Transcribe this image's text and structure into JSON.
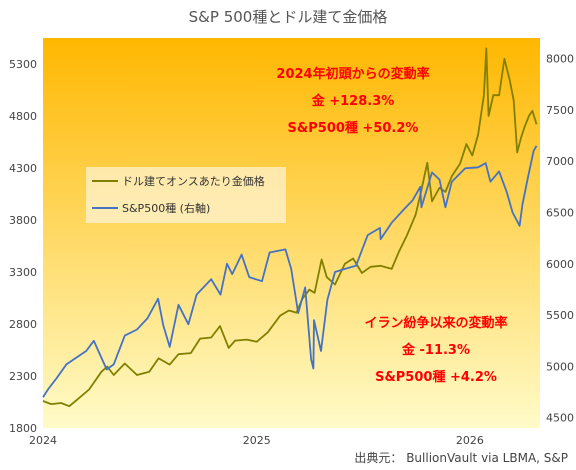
{
  "chart_data": {
    "type": "line",
    "title": "S&P 500種とドル建て金価格",
    "source": "出典元： BullionVault via LBMA, S&P",
    "x_range": [
      "2024-01-01",
      "2026-05-01"
    ],
    "x_tick_labels": [
      "2024",
      "2025",
      "2026"
    ],
    "x_tick_dates": [
      "2024-01-01",
      "2025-01-01",
      "2026-01-01"
    ],
    "left_axis": {
      "label": "",
      "ylim": [
        1800,
        5550
      ],
      "ticks": [
        1800,
        2300,
        2800,
        3300,
        3800,
        4300,
        4800,
        5300
      ]
    },
    "right_axis": {
      "label": "",
      "ylim": [
        4400,
        8200
      ],
      "ticks": [
        4500,
        5000,
        5500,
        6000,
        6500,
        7000,
        7500,
        8000
      ]
    },
    "legend": {
      "placement": "center-left",
      "entries": [
        "ドル建てオンスあたり金価格",
        "S&P500種 (右軸)"
      ]
    },
    "series": [
      {
        "name": "ドル建てオンスあたり金価格",
        "axis": "left",
        "color": "#808000",
        "points": [
          [
            "2024-01-01",
            2060
          ],
          [
            "2024-01-15",
            2030
          ],
          [
            "2024-02-01",
            2040
          ],
          [
            "2024-02-15",
            2010
          ],
          [
            "2024-03-01",
            2080
          ],
          [
            "2024-03-20",
            2170
          ],
          [
            "2024-04-10",
            2340
          ],
          [
            "2024-04-20",
            2390
          ],
          [
            "2024-05-01",
            2310
          ],
          [
            "2024-05-20",
            2420
          ],
          [
            "2024-06-10",
            2310
          ],
          [
            "2024-07-01",
            2340
          ],
          [
            "2024-07-17",
            2470
          ],
          [
            "2024-08-05",
            2410
          ],
          [
            "2024-08-20",
            2510
          ],
          [
            "2024-09-10",
            2520
          ],
          [
            "2024-09-26",
            2660
          ],
          [
            "2024-10-15",
            2670
          ],
          [
            "2024-10-30",
            2780
          ],
          [
            "2024-11-14",
            2570
          ],
          [
            "2024-11-25",
            2640
          ],
          [
            "2024-12-15",
            2650
          ],
          [
            "2025-01-01",
            2630
          ],
          [
            "2025-01-20",
            2720
          ],
          [
            "2025-02-10",
            2880
          ],
          [
            "2025-02-25",
            2930
          ],
          [
            "2025-03-10",
            2910
          ],
          [
            "2025-03-20",
            3040
          ],
          [
            "2025-04-01",
            3130
          ],
          [
            "2025-04-10",
            3100
          ],
          [
            "2025-04-22",
            3420
          ],
          [
            "2025-05-01",
            3250
          ],
          [
            "2025-05-15",
            3180
          ],
          [
            "2025-06-01",
            3380
          ],
          [
            "2025-06-15",
            3430
          ],
          [
            "2025-06-30",
            3290
          ],
          [
            "2025-07-15",
            3350
          ],
          [
            "2025-08-01",
            3360
          ],
          [
            "2025-08-20",
            3330
          ],
          [
            "2025-09-01",
            3490
          ],
          [
            "2025-09-15",
            3650
          ],
          [
            "2025-09-30",
            3850
          ],
          [
            "2025-10-08",
            4040
          ],
          [
            "2025-10-20",
            4350
          ],
          [
            "2025-10-28",
            3980
          ],
          [
            "2025-11-10",
            4110
          ],
          [
            "2025-11-20",
            4070
          ],
          [
            "2025-12-01",
            4220
          ],
          [
            "2025-12-15",
            4340
          ],
          [
            "2025-12-26",
            4530
          ],
          [
            "2026-01-05",
            4420
          ],
          [
            "2026-01-15",
            4620
          ],
          [
            "2026-01-25",
            5000
          ],
          [
            "2026-01-29",
            5450
          ],
          [
            "2026-02-02",
            4800
          ],
          [
            "2026-02-10",
            5000
          ],
          [
            "2026-02-20",
            5000
          ],
          [
            "2026-03-01",
            5350
          ],
          [
            "2026-03-10",
            5150
          ],
          [
            "2026-03-17",
            4950
          ],
          [
            "2026-03-23",
            4450
          ],
          [
            "2026-03-30",
            4600
          ],
          [
            "2026-04-05",
            4700
          ],
          [
            "2026-04-12",
            4800
          ],
          [
            "2026-04-18",
            4850
          ],
          [
            "2026-04-25",
            4720
          ]
        ]
      },
      {
        "name": "S&P500種 (右軸)",
        "axis": "right",
        "color": "#4472C4",
        "points": [
          [
            "2024-01-01",
            4700
          ],
          [
            "2024-01-10",
            4780
          ],
          [
            "2024-01-25",
            4890
          ],
          [
            "2024-02-10",
            5020
          ],
          [
            "2024-02-28",
            5090
          ],
          [
            "2024-03-15",
            5150
          ],
          [
            "2024-03-28",
            5250
          ],
          [
            "2024-04-19",
            4970
          ],
          [
            "2024-05-01",
            5020
          ],
          [
            "2024-05-20",
            5300
          ],
          [
            "2024-06-10",
            5360
          ],
          [
            "2024-06-28",
            5470
          ],
          [
            "2024-07-16",
            5660
          ],
          [
            "2024-07-25",
            5400
          ],
          [
            "2024-08-05",
            5190
          ],
          [
            "2024-08-20",
            5600
          ],
          [
            "2024-09-06",
            5410
          ],
          [
            "2024-09-20",
            5700
          ],
          [
            "2024-10-15",
            5850
          ],
          [
            "2024-10-31",
            5700
          ],
          [
            "2024-11-11",
            6000
          ],
          [
            "2024-11-20",
            5900
          ],
          [
            "2024-12-06",
            6090
          ],
          [
            "2024-12-19",
            5870
          ],
          [
            "2025-01-10",
            5830
          ],
          [
            "2025-01-23",
            6110
          ],
          [
            "2025-02-19",
            6140
          ],
          [
            "2025-03-01",
            5950
          ],
          [
            "2025-03-13",
            5520
          ],
          [
            "2025-03-25",
            5770
          ],
          [
            "2025-04-04",
            5070
          ],
          [
            "2025-04-08",
            4980
          ],
          [
            "2025-04-09",
            5450
          ],
          [
            "2025-04-21",
            5150
          ],
          [
            "2025-05-02",
            5650
          ],
          [
            "2025-05-15",
            5920
          ],
          [
            "2025-06-01",
            5950
          ],
          [
            "2025-06-20",
            5980
          ],
          [
            "2025-07-10",
            6280
          ],
          [
            "2025-07-31",
            6350
          ],
          [
            "2025-08-01",
            6240
          ],
          [
            "2025-08-20",
            6400
          ],
          [
            "2025-09-10",
            6530
          ],
          [
            "2025-09-25",
            6620
          ],
          [
            "2025-10-08",
            6750
          ],
          [
            "2025-10-10",
            6550
          ],
          [
            "2025-10-28",
            6890
          ],
          [
            "2025-11-10",
            6820
          ],
          [
            "2025-11-20",
            6550
          ],
          [
            "2025-12-01",
            6800
          ],
          [
            "2025-12-24",
            6930
          ],
          [
            "2026-01-15",
            6940
          ],
          [
            "2026-01-28",
            6980
          ],
          [
            "2026-02-05",
            6800
          ],
          [
            "2026-02-20",
            6900
          ],
          [
            "2026-03-05",
            6700
          ],
          [
            "2026-03-15",
            6500
          ],
          [
            "2026-03-27",
            6370
          ],
          [
            "2026-04-01",
            6580
          ],
          [
            "2026-04-10",
            6830
          ],
          [
            "2026-04-20",
            7100
          ],
          [
            "2026-04-25",
            7150
          ]
        ]
      }
    ],
    "annotations": [
      {
        "lines": [
          "2024年初頭からの変動率",
          "金 +128.3%",
          "S&P500種 +50.2%"
        ],
        "color": "#FF0000"
      },
      {
        "lines": [
          "イラン紛争以来の変動率",
          "金 -11.3%",
          "S&P500種 +4.2%"
        ],
        "color": "#FF0000"
      }
    ],
    "background_gradient": [
      "#FFB700",
      "#FFFBC8"
    ],
    "grid": false
  }
}
